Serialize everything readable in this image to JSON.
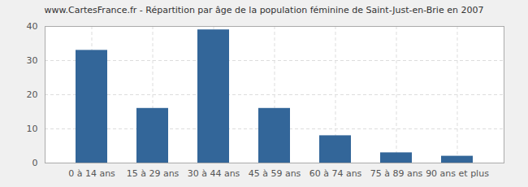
{
  "chart_data": {
    "type": "bar",
    "title": "www.CartesFrance.fr - Répartition par âge de la population féminine de Saint-Just-en-Brie en 2007",
    "categories": [
      "0 à 14 ans",
      "15 à 29 ans",
      "30 à 44 ans",
      "45 à 59 ans",
      "60 à 74 ans",
      "75 à 89 ans",
      "90 ans et plus"
    ],
    "values": [
      33,
      16,
      39,
      16,
      8,
      3,
      2
    ],
    "color": "#336699",
    "ylim": [
      0,
      40
    ],
    "yticks": [
      0,
      10,
      20,
      30,
      40
    ],
    "grid": true
  }
}
